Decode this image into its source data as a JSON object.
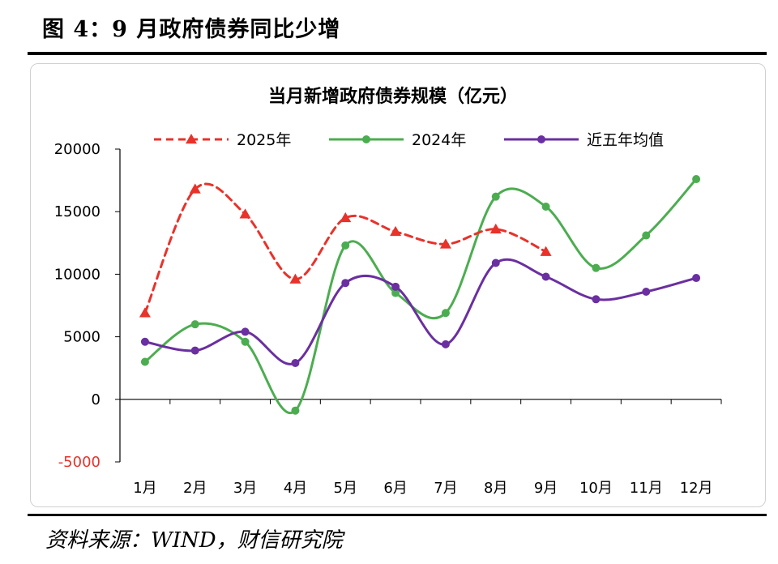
{
  "figure": {
    "title": "图 4：9 月政府债券同比少增",
    "source": "资料来源：WIND，财信研究院"
  },
  "chart_data": {
    "type": "line",
    "title": "当月新增政府债券规模（亿元）",
    "xlabel": "",
    "ylabel": "",
    "categories": [
      "1月",
      "2月",
      "3月",
      "4月",
      "5月",
      "6月",
      "7月",
      "8月",
      "9月",
      "10月",
      "11月",
      "12月"
    ],
    "ylim": [
      -5000,
      20000
    ],
    "yticks": [
      -5000,
      0,
      5000,
      10000,
      15000,
      20000
    ],
    "grid": false,
    "legend_position": "top",
    "series": [
      {
        "name": "2025年",
        "color": "#e8322a",
        "dash": true,
        "marker": "triangle",
        "values": [
          6900,
          16800,
          14800,
          9600,
          14500,
          13400,
          12400,
          13600,
          11800,
          null,
          null,
          null
        ]
      },
      {
        "name": "2024年",
        "color": "#4cad50",
        "dash": false,
        "marker": "circle",
        "values": [
          3000,
          6000,
          4600,
          -900,
          12300,
          8500,
          6900,
          16200,
          15400,
          10500,
          13100,
          17600
        ]
      },
      {
        "name": "近五年均值",
        "color": "#6a2fa0",
        "dash": false,
        "marker": "circle",
        "values": [
          4600,
          3900,
          5400,
          2900,
          9300,
          9000,
          4400,
          10900,
          9800,
          8000,
          8600,
          9700
        ]
      }
    ]
  }
}
